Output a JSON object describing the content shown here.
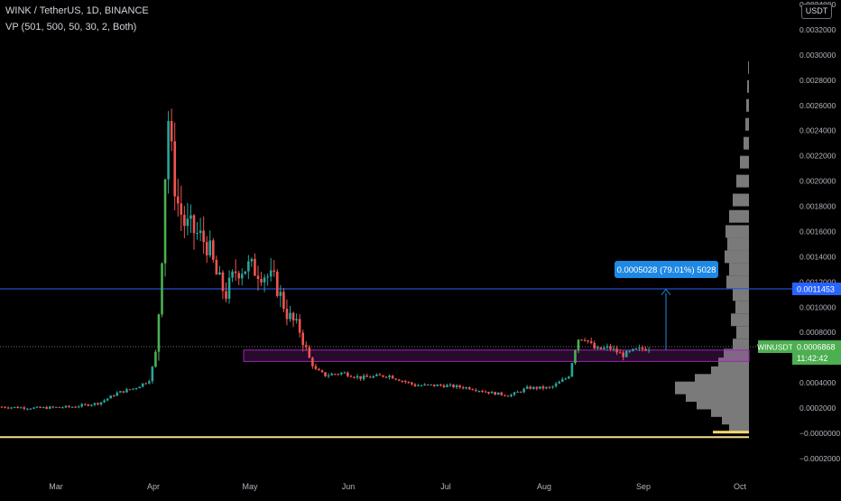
{
  "header": {
    "title": "WINK / TetherUS, 1D, BINANCE",
    "indicator": "VP (501, 500, 50, 30, 2, Both)"
  },
  "price_axis": {
    "currency": "USDT",
    "ticks": [
      "0.0034000",
      "0.0032000",
      "0.0030000",
      "0.0028000",
      "0.0026000",
      "0.0024000",
      "0.0022000",
      "0.0020000",
      "0.0018000",
      "0.0016000",
      "0.0014000",
      "0.0012000",
      "0.0010000",
      "0.0008000",
      "0.0006000",
      "0.0004000",
      "0.0002000",
      "−0.0000000",
      "−0.0002000"
    ]
  },
  "time_axis": {
    "labels": [
      "Mar",
      "Apr",
      "May",
      "Jun",
      "Jul",
      "Aug",
      "Sep",
      "Oct"
    ]
  },
  "price_labels": {
    "horizontal_line": "0.0011453",
    "symbol": "WINUSDT",
    "last_price": "0.0006868",
    "countdown": "11:42:42"
  },
  "measure_label": "0.0005028 (79.01%) 5028",
  "colors": {
    "up": "#26a69a",
    "up_bright": "#4caf50",
    "down": "#ef5350",
    "hline": "#2962ff",
    "zone": "#9c27b0",
    "support": "#f6e08b",
    "measure": "#1e88e5",
    "profile": "#7a7a7a",
    "profile_edge": "#f5d76e"
  },
  "chart_data": {
    "type": "candlestick",
    "title": "WINK / TetherUS, 1D, BINANCE",
    "y_unit": "USDT",
    "ylim": [
      -0.00029,
      0.0034
    ],
    "x_tick_labels": [
      "Mar",
      "Apr",
      "May",
      "Jun",
      "Jul",
      "Aug",
      "Sep",
      "Oct"
    ],
    "candles_sampled": [
      {
        "date": "Feb 20",
        "o": 0.00019,
        "h": 0.00022,
        "l": 0.00017,
        "c": 0.0002
      },
      {
        "date": "Mar 1",
        "o": 0.00018,
        "h": 0.00021,
        "l": 0.00016,
        "c": 0.00019
      },
      {
        "date": "Mar 10",
        "o": 0.0002,
        "h": 0.00024,
        "l": 0.00019,
        "c": 0.00023
      },
      {
        "date": "Mar 20",
        "o": 0.0003,
        "h": 0.00042,
        "l": 0.00028,
        "c": 0.00038
      },
      {
        "date": "Mar 31",
        "o": 0.0006,
        "h": 0.00074,
        "l": 0.00055,
        "c": 0.00071
      },
      {
        "date": "Apr 3",
        "o": 0.00116,
        "h": 0.003,
        "l": 0.0011,
        "c": 0.00265
      },
      {
        "date": "Apr 10",
        "o": 0.002,
        "h": 0.00228,
        "l": 0.0015,
        "c": 0.0017
      },
      {
        "date": "Apr 20",
        "o": 0.0015,
        "h": 0.0017,
        "l": 0.0009,
        "c": 0.0012
      },
      {
        "date": "May 1",
        "o": 0.0013,
        "h": 0.00145,
        "l": 0.0011,
        "c": 0.00125
      },
      {
        "date": "May 10",
        "o": 0.00125,
        "h": 0.0015,
        "l": 0.0011,
        "c": 0.0013
      },
      {
        "date": "May 20",
        "o": 0.0008,
        "h": 0.0009,
        "l": 0.0006,
        "c": 0.00068
      },
      {
        "date": "May 25",
        "o": 0.0006,
        "h": 0.0007,
        "l": 0.00045,
        "c": 0.0005
      },
      {
        "date": "Jun 10",
        "o": 0.0005,
        "h": 0.00056,
        "l": 0.0004,
        "c": 0.00045
      },
      {
        "date": "Jul 1",
        "o": 0.00038,
        "h": 0.00045,
        "l": 0.0003,
        "c": 0.0004
      },
      {
        "date": "Jul 20",
        "o": 0.00035,
        "h": 0.00039,
        "l": 0.00029,
        "c": 0.00033
      },
      {
        "date": "Aug 1",
        "o": 0.00033,
        "h": 0.00039,
        "l": 0.0003,
        "c": 0.00037
      },
      {
        "date": "Aug 12",
        "o": 0.00045,
        "h": 0.00082,
        "l": 0.00044,
        "c": 0.00078
      },
      {
        "date": "Aug 20",
        "o": 0.0007,
        "h": 0.00074,
        "l": 0.0006,
        "c": 0.00065
      },
      {
        "date": "Sep 3",
        "o": 0.00064,
        "h": 0.00071,
        "l": 0.00062,
        "c": 0.00068
      }
    ],
    "horizontal_line": 0.0011453,
    "last_price": 0.0006868,
    "zone": [
      0.00057,
      0.00066
    ],
    "support_line": -3e-05,
    "measure": {
      "from": 0.00066,
      "to": 0.00114,
      "label": "0.0005028 (79.01%) 5028"
    }
  }
}
